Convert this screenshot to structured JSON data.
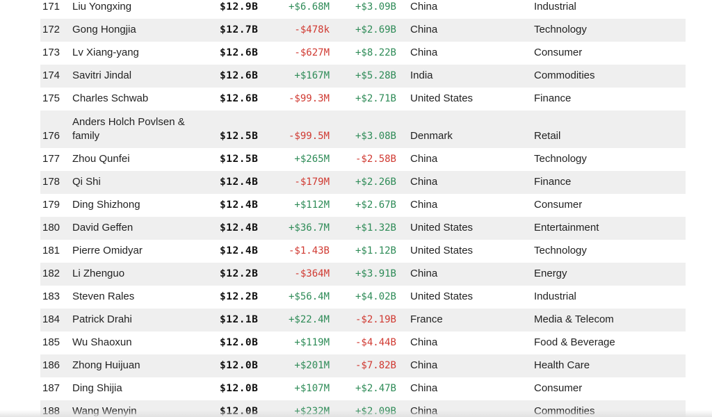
{
  "rows": [
    {
      "rank": "171",
      "name": "Liu Yongxing",
      "worth": "$12.9B",
      "chg1": "+$6.68M",
      "chg1_sign": "pos",
      "chg2": "+$3.09B",
      "chg2_sign": "pos",
      "country": "China",
      "industry": "Industrial"
    },
    {
      "rank": "172",
      "name": "Gong Hongjia",
      "worth": "$12.7B",
      "chg1": "-$478k",
      "chg1_sign": "neg",
      "chg2": "+$2.69B",
      "chg2_sign": "pos",
      "country": "China",
      "industry": "Technology"
    },
    {
      "rank": "173",
      "name": "Lv Xiang-yang",
      "worth": "$12.6B",
      "chg1": "-$627M",
      "chg1_sign": "neg",
      "chg2": "+$8.22B",
      "chg2_sign": "pos",
      "country": "China",
      "industry": "Consumer"
    },
    {
      "rank": "174",
      "name": "Savitri Jindal",
      "worth": "$12.6B",
      "chg1": "+$167M",
      "chg1_sign": "pos",
      "chg2": "+$5.28B",
      "chg2_sign": "pos",
      "country": "India",
      "industry": "Commodities"
    },
    {
      "rank": "175",
      "name": "Charles Schwab",
      "worth": "$12.6B",
      "chg1": "-$99.3M",
      "chg1_sign": "neg",
      "chg2": "+$2.71B",
      "chg2_sign": "pos",
      "country": "United States",
      "industry": "Finance"
    },
    {
      "rank": "176",
      "name": "Anders Holch Povlsen & family",
      "worth": "$12.5B",
      "chg1": "-$99.5M",
      "chg1_sign": "neg",
      "chg2": "+$3.08B",
      "chg2_sign": "pos",
      "country": "Denmark",
      "industry": "Retail"
    },
    {
      "rank": "177",
      "name": "Zhou Qunfei",
      "worth": "$12.5B",
      "chg1": "+$265M",
      "chg1_sign": "pos",
      "chg2": "-$2.58B",
      "chg2_sign": "neg",
      "country": "China",
      "industry": "Technology"
    },
    {
      "rank": "178",
      "name": "Qi Shi",
      "worth": "$12.4B",
      "chg1": "-$179M",
      "chg1_sign": "neg",
      "chg2": "+$2.26B",
      "chg2_sign": "pos",
      "country": "China",
      "industry": "Finance"
    },
    {
      "rank": "179",
      "name": "Ding Shizhong",
      "worth": "$12.4B",
      "chg1": "+$112M",
      "chg1_sign": "pos",
      "chg2": "+$2.67B",
      "chg2_sign": "pos",
      "country": "China",
      "industry": "Consumer"
    },
    {
      "rank": "180",
      "name": "David Geffen",
      "worth": "$12.4B",
      "chg1": "+$36.7M",
      "chg1_sign": "pos",
      "chg2": "+$1.32B",
      "chg2_sign": "pos",
      "country": "United States",
      "industry": "Entertainment"
    },
    {
      "rank": "181",
      "name": "Pierre Omidyar",
      "worth": "$12.4B",
      "chg1": "-$1.43B",
      "chg1_sign": "neg",
      "chg2": "+$1.12B",
      "chg2_sign": "pos",
      "country": "United States",
      "industry": "Technology"
    },
    {
      "rank": "182",
      "name": "Li Zhenguo",
      "worth": "$12.2B",
      "chg1": "-$364M",
      "chg1_sign": "neg",
      "chg2": "+$3.91B",
      "chg2_sign": "pos",
      "country": "China",
      "industry": "Energy"
    },
    {
      "rank": "183",
      "name": "Steven Rales",
      "worth": "$12.2B",
      "chg1": "+$56.4M",
      "chg1_sign": "pos",
      "chg2": "+$4.02B",
      "chg2_sign": "pos",
      "country": "United States",
      "industry": "Industrial"
    },
    {
      "rank": "184",
      "name": "Patrick Drahi",
      "worth": "$12.1B",
      "chg1": "+$22.4M",
      "chg1_sign": "pos",
      "chg2": "-$2.19B",
      "chg2_sign": "neg",
      "country": "France",
      "industry": "Media & Telecom"
    },
    {
      "rank": "185",
      "name": "Wu Shaoxun",
      "worth": "$12.0B",
      "chg1": "+$119M",
      "chg1_sign": "pos",
      "chg2": "-$4.44B",
      "chg2_sign": "neg",
      "country": "China",
      "industry": "Food & Beverage"
    },
    {
      "rank": "186",
      "name": "Zhong Huijuan",
      "worth": "$12.0B",
      "chg1": "+$201M",
      "chg1_sign": "pos",
      "chg2": "-$7.82B",
      "chg2_sign": "neg",
      "country": "China",
      "industry": "Health Care"
    },
    {
      "rank": "187",
      "name": "Ding Shijia",
      "worth": "$12.0B",
      "chg1": "+$107M",
      "chg1_sign": "pos",
      "chg2": "+$2.47B",
      "chg2_sign": "pos",
      "country": "China",
      "industry": "Consumer"
    },
    {
      "rank": "188",
      "name": "Wang Wenyin",
      "worth": "$12.0B",
      "chg1": "+$232M",
      "chg1_sign": "pos",
      "chg2": "+$2.09B",
      "chg2_sign": "pos",
      "country": "China",
      "industry": "Commodities"
    }
  ],
  "colors": {
    "positive": "#2e8b57",
    "negative": "#d03a32",
    "row_alt_bg": "#efefef"
  }
}
